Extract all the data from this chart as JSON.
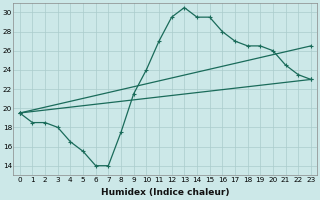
{
  "xlabel": "Humidex (Indice chaleur)",
  "ylabel": "",
  "bg_color": "#cce8e8",
  "grid_color": "#aacccc",
  "line_color": "#1a6b5a",
  "xlim": [
    -0.5,
    23.5
  ],
  "ylim": [
    13,
    31
  ],
  "yticks": [
    14,
    16,
    18,
    20,
    22,
    24,
    26,
    28,
    30
  ],
  "xticks": [
    0,
    1,
    2,
    3,
    4,
    5,
    6,
    7,
    8,
    9,
    10,
    11,
    12,
    13,
    14,
    15,
    16,
    17,
    18,
    19,
    20,
    21,
    22,
    23
  ],
  "series1": [
    19.5,
    18.5,
    18.5,
    18.0,
    16.5,
    15.5,
    14.0,
    14.0,
    17.5,
    21.5,
    24.0,
    27.0,
    29.5,
    30.5,
    29.5,
    29.5,
    28.0,
    27.0,
    26.5,
    26.5,
    26.0,
    24.5,
    23.5,
    23.0
  ],
  "series2_x": [
    0,
    23
  ],
  "series2_y": [
    19.5,
    26.5
  ],
  "series3_x": [
    0,
    23
  ],
  "series3_y": [
    19.5,
    23.0
  ]
}
